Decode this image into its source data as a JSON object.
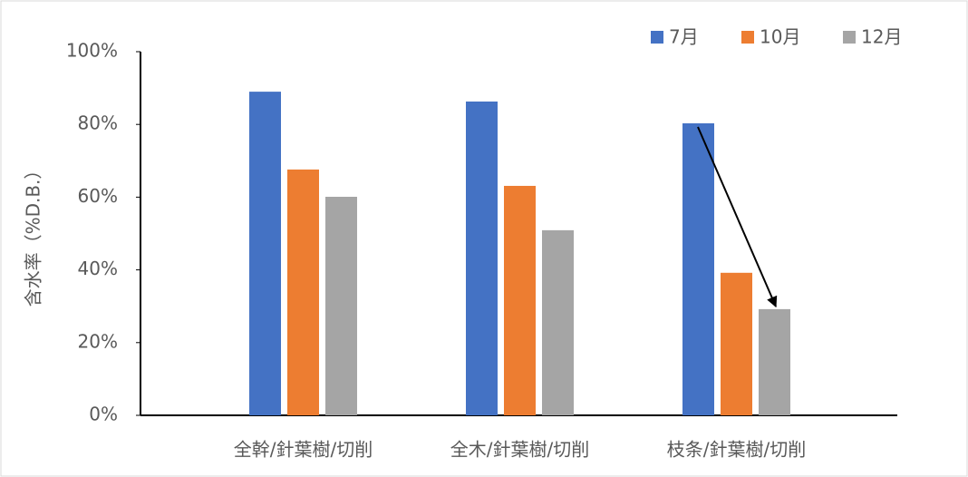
{
  "chart_data": {
    "type": "bar",
    "y_label": "含水率（%D.B.）",
    "categories": [
      "全幹/針葉樹/切削",
      "全木/針葉樹/切削",
      "枝条/針葉樹/切削"
    ],
    "series": [
      {
        "name": "7月",
        "color": "#4472c4",
        "values": [
          89.0,
          86.3,
          80.3
        ]
      },
      {
        "name": "10月",
        "color": "#ed7d31",
        "values": [
          67.6,
          63.1,
          39.2
        ]
      },
      {
        "name": "12月",
        "color": "#a5a5a5",
        "values": [
          60.1,
          50.9,
          29.2
        ]
      }
    ],
    "ylim": [
      0,
      100
    ],
    "yticks": [
      {
        "value": 0,
        "label": "0%"
      },
      {
        "value": 20,
        "label": "20%"
      },
      {
        "value": 40,
        "label": "40%"
      },
      {
        "value": 60,
        "label": "60%"
      },
      {
        "value": 80,
        "label": "80%"
      },
      {
        "value": 100,
        "label": "100%"
      }
    ],
    "legend": "top-right"
  }
}
